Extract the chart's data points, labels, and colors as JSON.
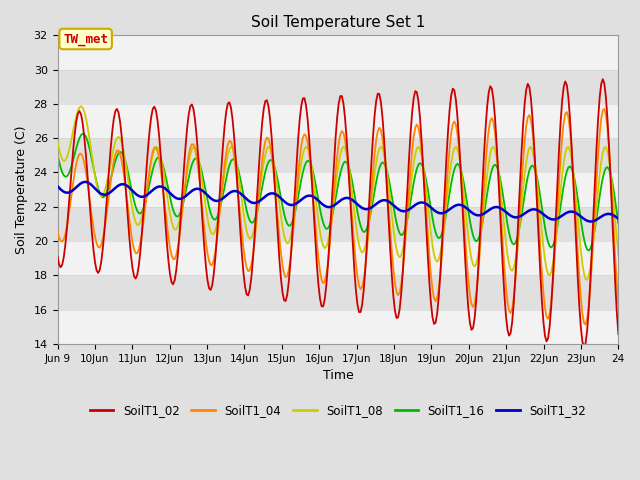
{
  "title": "Soil Temperature Set 1",
  "xlabel": "Time",
  "ylabel": "Soil Temperature (C)",
  "ylim": [
    14,
    32
  ],
  "yticks": [
    14,
    16,
    18,
    20,
    22,
    24,
    26,
    28,
    30,
    32
  ],
  "bg_color": "#e0e0e0",
  "annotation_text": "TW_met",
  "annotation_bg": "#ffffcc",
  "annotation_fg": "#cc0000",
  "annotation_border": "#ccaa00",
  "legend_labels": [
    "SoilT1_02",
    "SoilT1_04",
    "SoilT1_08",
    "SoilT1_16",
    "SoilT1_32"
  ],
  "line_colors": [
    "#cc0000",
    "#ff8800",
    "#cccc00",
    "#00bb00",
    "#0000cc"
  ],
  "line_widths": [
    1.3,
    1.3,
    1.3,
    1.3,
    1.8
  ]
}
